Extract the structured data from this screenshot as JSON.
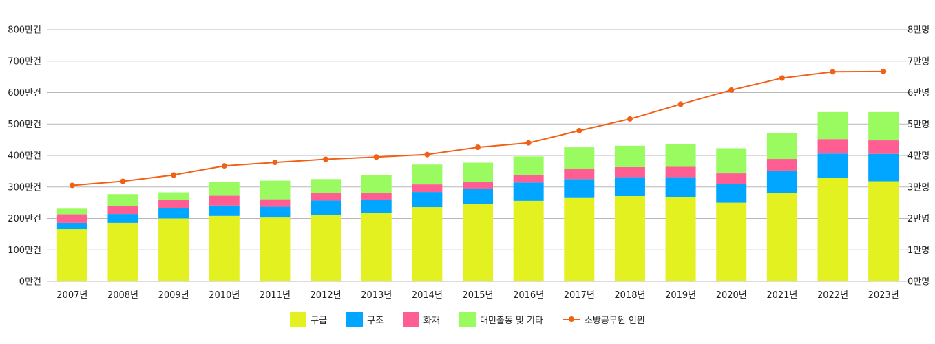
{
  "chart_data": {
    "type": "bar",
    "stacked": true,
    "categories": [
      "2007년",
      "2008년",
      "2009년",
      "2010년",
      "2011년",
      "2012년",
      "2013년",
      "2014년",
      "2015년",
      "2016년",
      "2017년",
      "2018년",
      "2019년",
      "2020년",
      "2021년",
      "2022년",
      "2023년"
    ],
    "series": [
      {
        "name": "구급",
        "type": "bar",
        "axis": "left",
        "color": "#e2f11f",
        "values": [
          166,
          186,
          200,
          208,
          203,
          212,
          217,
          236,
          245,
          256,
          265,
          271,
          267,
          250,
          282,
          329,
          318
        ]
      },
      {
        "name": "구조",
        "type": "bar",
        "axis": "left",
        "color": "#00a6ff",
        "values": [
          20,
          28,
          33,
          33,
          34,
          45,
          43,
          48,
          48,
          58,
          60,
          60,
          64,
          60,
          70,
          77,
          87
        ]
      },
      {
        "name": "화재",
        "type": "bar",
        "axis": "left",
        "color": "#ff5e93",
        "values": [
          27,
          26,
          27,
          31,
          24,
          24,
          21,
          24,
          24,
          25,
          33,
          32,
          33,
          33,
          37,
          46,
          43
        ]
      },
      {
        "name": "대민출동 및 기타",
        "type": "bar",
        "axis": "left",
        "color": "#99fb5f",
        "values": [
          18,
          37,
          23,
          43,
          59,
          44,
          56,
          63,
          60,
          58,
          68,
          68,
          72,
          80,
          83,
          86,
          90
        ]
      },
      {
        "name": "소방공무원 인원",
        "type": "line",
        "axis": "right",
        "color": "#f26015",
        "values": [
          3.05,
          3.18,
          3.38,
          3.67,
          3.78,
          3.88,
          3.95,
          4.03,
          4.26,
          4.4,
          4.79,
          5.16,
          5.63,
          6.08,
          6.46,
          6.66,
          6.67
        ]
      }
    ],
    "y_left": {
      "ylim": [
        0,
        800
      ],
      "ticks": [
        0,
        100,
        200,
        300,
        400,
        500,
        600,
        700,
        800
      ],
      "tick_suffix": "만건"
    },
    "y_right": {
      "ylim": [
        0,
        8
      ],
      "ticks": [
        0,
        1,
        2,
        3,
        4,
        5,
        6,
        7,
        8
      ],
      "tick_suffix": "만명"
    },
    "grid": true,
    "legend_position": "bottom",
    "title": "",
    "xlabel": "",
    "ylabel": ""
  }
}
